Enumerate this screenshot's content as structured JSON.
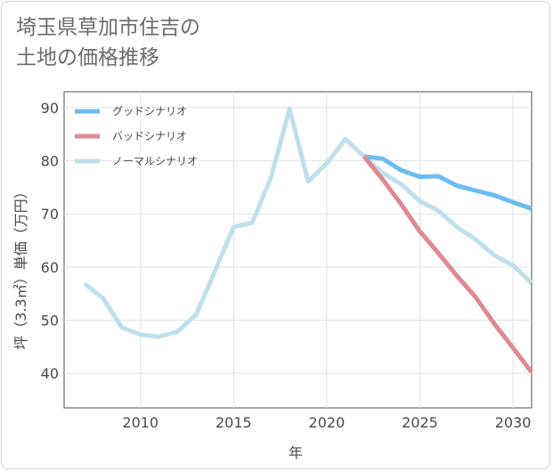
{
  "page": {
    "title_line1": "埼玉県草加市住吉の",
    "title_line2": "土地の価格推移"
  },
  "chart_data": {
    "type": "line",
    "xlabel": "年",
    "ylabel": "坪（3.3㎡）単価（万円）",
    "xlim": [
      2005.9,
      2031
    ],
    "ylim": [
      33.5,
      93
    ],
    "xticks": [
      2010,
      2015,
      2020,
      2025,
      2030
    ],
    "yticks": [
      40,
      50,
      60,
      70,
      80,
      90
    ],
    "grid": true,
    "legend_position": "top-left",
    "series": [
      {
        "name": "グッドシナリオ",
        "color": "#6bbcf0",
        "x": [
          2022,
          2023,
          2024,
          2025,
          2026,
          2027,
          2028,
          2029,
          2030,
          2031
        ],
        "y": [
          80.8,
          80.4,
          78.2,
          77.0,
          77.1,
          75.3,
          74.4,
          73.5,
          72.2,
          71.0
        ]
      },
      {
        "name": "バッドシナリオ",
        "color": "#de8a93",
        "x": [
          2022,
          2023,
          2024,
          2025,
          2026,
          2027,
          2028,
          2029,
          2030,
          2031
        ],
        "y": [
          80.8,
          76.5,
          71.8,
          66.7,
          62.6,
          58.3,
          54.3,
          49.3,
          44.8,
          40.2
        ]
      },
      {
        "name": "ノーマルシナリオ",
        "color": "#c0dfec",
        "x": [
          2007,
          2008,
          2009,
          2010,
          2011,
          2012,
          2013,
          2014,
          2015,
          2016,
          2017,
          2018,
          2019,
          2020,
          2021,
          2022,
          2023,
          2024,
          2025,
          2026,
          2027,
          2028,
          2029,
          2030,
          2031
        ],
        "y": [
          56.9,
          54.1,
          48.6,
          47.3,
          46.9,
          47.9,
          51.1,
          59.3,
          67.5,
          68.4,
          76.8,
          89.8,
          76.1,
          79.5,
          84.1,
          80.8,
          77.7,
          75.6,
          72.4,
          70.6,
          67.5,
          65.2,
          62.2,
          60.3,
          57.0
        ]
      }
    ]
  }
}
